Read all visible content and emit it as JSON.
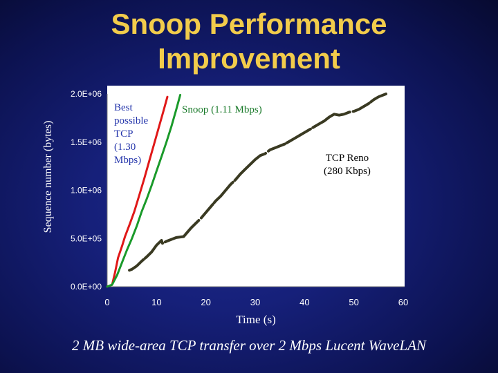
{
  "slide": {
    "title_line1": "Snoop Performance",
    "title_line2": "Improvement",
    "caption": "2 MB wide-area TCP transfer over 2 Mbps Lucent WaveLAN"
  },
  "colors": {
    "title": "#f2cc4b",
    "annot_best": "#2233aa",
    "annot_snoop": "#1a7a2a",
    "annot_reno": "#000000",
    "series_best": "#e01818",
    "series_snoop": "#1a9a2a",
    "series_reno": "#3a3a22"
  },
  "chart_data": {
    "type": "line",
    "xlabel": "Time (s)",
    "ylabel": "Sequence number (bytes)",
    "xlim": [
      0,
      60
    ],
    "ylim": [
      0,
      2000000
    ],
    "x_ticks": [
      "0",
      "10",
      "20",
      "30",
      "40",
      "50",
      "60"
    ],
    "y_ticks": [
      "0.0E+00",
      "5.0E+05",
      "1.0E+06",
      "1.5E+06",
      "2.0E+06"
    ],
    "grid": false,
    "annotations": [
      {
        "text": "Best\npossible\nTCP\n(1.30\nMbps)"
      },
      {
        "text": "Snoop (1.11 Mbps)"
      },
      {
        "text": "TCP Reno\n(280 Kbps)"
      }
    ],
    "series": [
      {
        "x": [
          0,
          1.0,
          1.6,
          2.2,
          3.0,
          3.6,
          4.5,
          5.5,
          6.5,
          7.5,
          8.5,
          9.5,
          10.5,
          11.5,
          12.2
        ],
        "y": [
          0,
          20000,
          150000,
          300000,
          420000,
          520000,
          640000,
          780000,
          950000,
          1120000,
          1300000,
          1480000,
          1660000,
          1840000,
          1970000
        ]
      },
      {
        "x": [
          0,
          1.0,
          2.0,
          3.0,
          4.0,
          5.0,
          6.0,
          7.0,
          8.0,
          9.0,
          10.0,
          11.0,
          12.0,
          13.0,
          14.0,
          14.8
        ],
        "y": [
          0,
          20000,
          120000,
          250000,
          380000,
          500000,
          630000,
          780000,
          910000,
          1050000,
          1200000,
          1350000,
          1500000,
          1660000,
          1840000,
          1990000
        ]
      },
      {
        "x": [
          4.5,
          5,
          6,
          7,
          8,
          9,
          10,
          11,
          11.2,
          12,
          13,
          14,
          15.5,
          16,
          17,
          18,
          19,
          20,
          21,
          22,
          23,
          24,
          25,
          26,
          27,
          28,
          29,
          30,
          31,
          32,
          33,
          34,
          35,
          36,
          37,
          38,
          39,
          40,
          41,
          42,
          43,
          44,
          45,
          46,
          47,
          48,
          49,
          50,
          51,
          52,
          53,
          54,
          55,
          56.5
        ],
        "y": [
          170000,
          180000,
          215000,
          265000,
          310000,
          360000,
          430000,
          480000,
          450000,
          470000,
          490000,
          510000,
          520000,
          550000,
          610000,
          660000,
          710000,
          770000,
          830000,
          890000,
          940000,
          1000000,
          1060000,
          1110000,
          1170000,
          1220000,
          1270000,
          1320000,
          1360000,
          1380000,
          1420000,
          1440000,
          1460000,
          1480000,
          1510000,
          1540000,
          1570000,
          1600000,
          1630000,
          1660000,
          1690000,
          1720000,
          1760000,
          1790000,
          1780000,
          1790000,
          1810000,
          1820000,
          1840000,
          1870000,
          1900000,
          1940000,
          1970000,
          2000000
        ]
      }
    ]
  }
}
